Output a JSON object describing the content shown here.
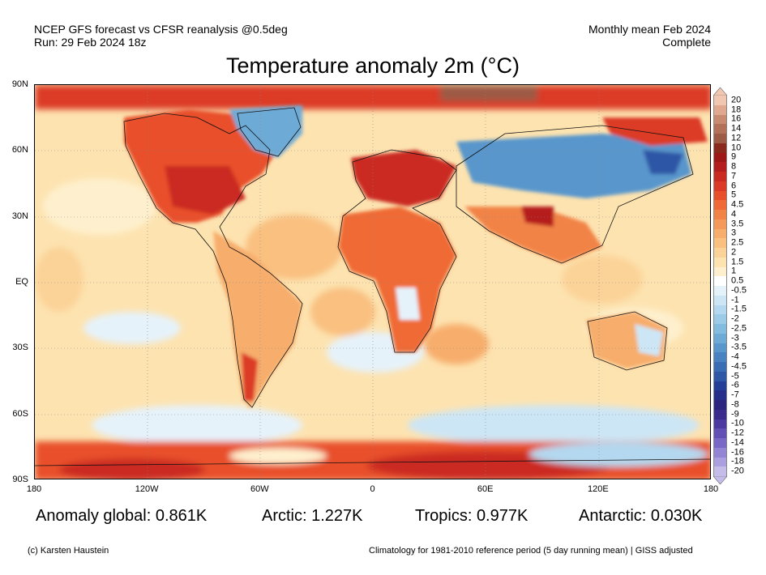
{
  "header": {
    "line1_left": "NCEP GFS forecast vs CFSR reanalysis @0.5deg",
    "line2_left": "Run: 29 Feb 2024 18z",
    "line1_right": "Monthly mean Feb 2024",
    "line2_right": "Complete"
  },
  "title": "Temperature anomaly 2m (°C)",
  "axes": {
    "lat_ticks": [
      "90N",
      "60N",
      "30N",
      "EQ",
      "30S",
      "60S",
      "90S"
    ],
    "lon_ticks": [
      "180",
      "120W",
      "60W",
      "0",
      "60E",
      "120E",
      "180"
    ]
  },
  "stats": {
    "global": "Anomaly global: 0.861K",
    "arctic": "Arctic: 1.227K",
    "tropics": "Tropics: 0.977K",
    "antarctic": "Antarctic: 0.030K"
  },
  "footer": {
    "credit": "(c) Karsten Haustein",
    "note": "Climatology for 1981-2010 reference period (5 day running mean) | GISS adjusted"
  },
  "colorbar": {
    "labels": [
      "20",
      "18",
      "16",
      "14",
      "12",
      "10",
      "9",
      "8",
      "7",
      "6",
      "5",
      "4.5",
      "4",
      "3.5",
      "3",
      "2.5",
      "2",
      "1.5",
      "1",
      "0.5",
      "-0.5",
      "-1",
      "-1.5",
      "-2",
      "-2.5",
      "-3",
      "-3.5",
      "-4",
      "-4.5",
      "-5",
      "-6",
      "-7",
      "-8",
      "-9",
      "-10",
      "-12",
      "-14",
      "-16",
      "-18",
      "-20"
    ],
    "colors": [
      "#f1c7b2",
      "#e0a88e",
      "#c98a72",
      "#b27158",
      "#9d5a44",
      "#8a2a1c",
      "#9e1818",
      "#b51e1e",
      "#cb2a22",
      "#dc3a28",
      "#e8502c",
      "#ef6a36",
      "#f28346",
      "#f5995a",
      "#f7ad6c",
      "#f9c080",
      "#fbd398",
      "#fde3b0",
      "#fef0ce",
      "#ffffff",
      "#e6f2fa",
      "#cde6f5",
      "#b4d8ef",
      "#9ccbe8",
      "#84bcdf",
      "#6eaad6",
      "#5896cc",
      "#4882c0",
      "#3b6db4",
      "#2e57a6",
      "#253f98",
      "#26308a",
      "#2c2580",
      "#3a2b8c",
      "#4d3aa0",
      "#6350b4",
      "#7a68c6",
      "#9384d4",
      "#ac9fe0",
      "#c6bcea"
    ]
  }
}
